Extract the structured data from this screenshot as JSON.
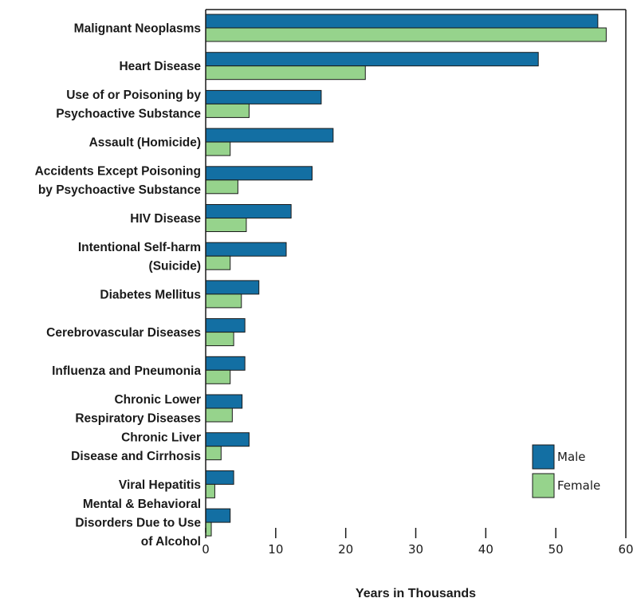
{
  "colors": {
    "male": "#136fa3",
    "female": "#96d38c",
    "stroke": "#1a1a1a"
  },
  "chart_data": {
    "type": "bar",
    "orientation": "horizontal",
    "title": "",
    "xlabel": "Years in Thousands",
    "ylabel": "",
    "xlim": [
      0,
      60
    ],
    "xticks": [
      0,
      10,
      20,
      30,
      40,
      50,
      60
    ],
    "grid": false,
    "legend_position": "bottom-right",
    "categories": [
      [
        "Malignant Neoplasms"
      ],
      [
        "Heart Disease"
      ],
      [
        "Use of or Poisoning by",
        "Psychoactive Substance"
      ],
      [
        "Assault (Homicide)"
      ],
      [
        "Accidents Except Poisoning",
        "by Psychoactive Substance"
      ],
      [
        "HIV Disease"
      ],
      [
        "Intentional Self-harm",
        "(Suicide)"
      ],
      [
        "Diabetes Mellitus"
      ],
      [
        "Cerebrovascular Diseases"
      ],
      [
        "Influenza and Pneumonia"
      ],
      [
        "Chronic Lower",
        "Respiratory Diseases"
      ],
      [
        "Chronic Liver",
        "Disease and Cirrhosis"
      ],
      [
        "Viral Hepatitis"
      ],
      [
        "Mental & Behavioral",
        "Disorders Due to Use",
        "of Alcohol"
      ]
    ],
    "series": [
      {
        "name": "Male",
        "values": [
          56.0,
          47.5,
          16.5,
          18.2,
          15.2,
          12.2,
          11.5,
          7.6,
          5.6,
          5.6,
          5.2,
          6.2,
          4.0,
          3.5
        ]
      },
      {
        "name": "Female",
        "values": [
          57.2,
          22.8,
          6.2,
          3.5,
          4.6,
          5.8,
          3.5,
          5.1,
          4.0,
          3.5,
          3.8,
          2.2,
          1.3,
          0.8
        ]
      }
    ]
  }
}
